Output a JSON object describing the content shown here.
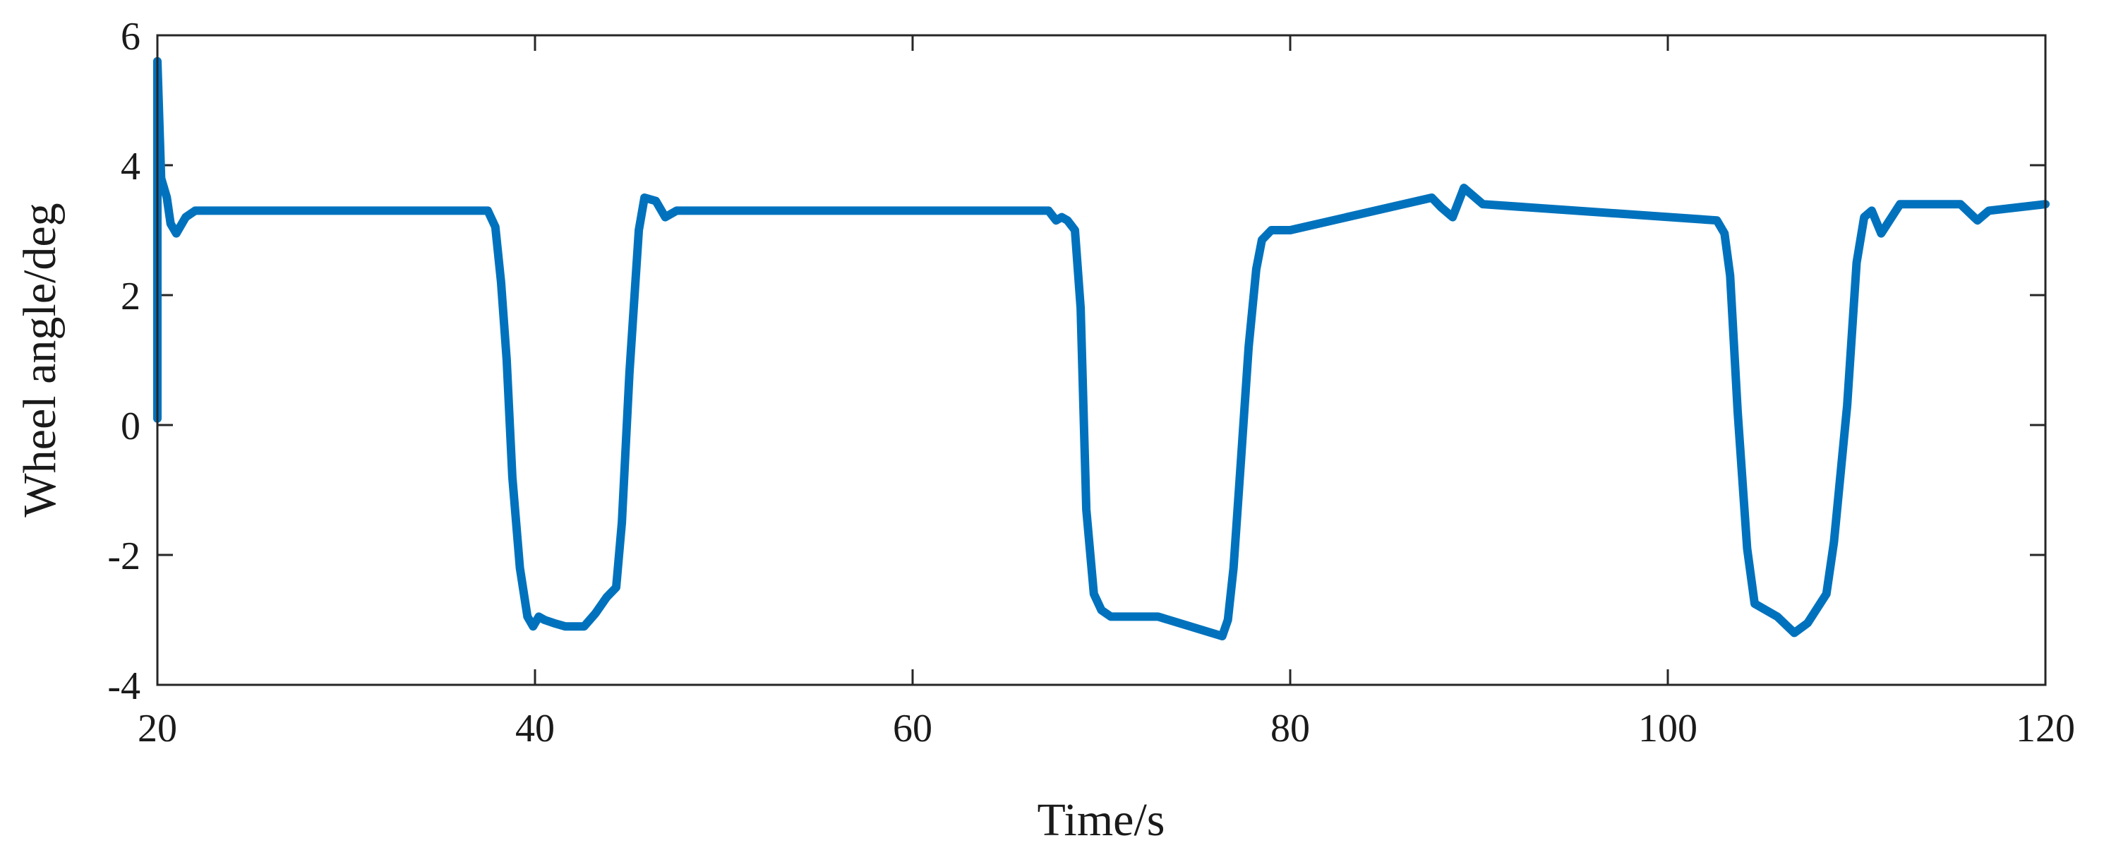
{
  "chart_data": {
    "type": "line",
    "title": "",
    "xlabel": "Time/s",
    "ylabel": "Wheel angle/deg",
    "xlim": [
      20,
      120
    ],
    "ylim": [
      -4,
      6
    ],
    "xticks": [
      20,
      40,
      60,
      80,
      100,
      120
    ],
    "yticks": [
      -4,
      -2,
      0,
      2,
      4,
      6
    ],
    "xtick_labels": [
      "20",
      "40",
      "60",
      "80",
      "100",
      "120"
    ],
    "ytick_labels": [
      "-4",
      "-2",
      "0",
      "2",
      "4",
      "6"
    ],
    "grid": false,
    "series": [
      {
        "color": "#0072bd",
        "x": [
          20.0,
          20.0,
          20.2,
          20.5,
          20.7,
          21.0,
          21.5,
          22.0,
          37.5,
          37.9,
          38.2,
          38.5,
          38.8,
          39.2,
          39.6,
          39.9,
          40.2,
          40.5,
          41.0,
          41.6,
          42.6,
          43.2,
          43.8,
          44.3,
          44.6,
          45.0,
          45.5,
          45.8,
          46.4,
          46.9,
          47.5,
          67.2,
          67.6,
          67.9,
          68.2,
          68.6,
          68.9,
          69.2,
          69.6,
          70.0,
          70.5,
          71.5,
          73.0,
          76.4,
          76.7,
          77.0,
          77.4,
          77.8,
          78.2,
          78.5,
          79.0,
          80.0,
          87.5,
          88.0,
          88.6,
          89.2,
          90.2,
          102.6,
          103.0,
          103.3,
          103.7,
          104.2,
          104.6,
          105.8,
          106.7,
          107.4,
          108.4,
          108.8,
          109.5,
          110.0,
          110.4,
          110.8,
          111.3,
          112.3,
          115.5,
          116.4,
          117.0,
          120.0
        ],
        "y": [
          0.1,
          5.6,
          3.8,
          3.5,
          3.1,
          2.95,
          3.2,
          3.3,
          3.3,
          3.05,
          2.2,
          1.0,
          -0.8,
          -2.2,
          -2.95,
          -3.1,
          -2.95,
          -3.0,
          -3.05,
          -3.1,
          -3.1,
          -2.9,
          -2.65,
          -2.5,
          -1.5,
          0.8,
          3.0,
          3.5,
          3.45,
          3.2,
          3.3,
          3.3,
          3.15,
          3.2,
          3.15,
          3.0,
          1.8,
          -1.3,
          -2.6,
          -2.85,
          -2.95,
          -2.95,
          -2.95,
          -3.25,
          -3.0,
          -2.2,
          -0.5,
          1.2,
          2.4,
          2.85,
          3.0,
          3.0,
          3.5,
          3.35,
          3.2,
          3.65,
          3.4,
          3.15,
          2.95,
          2.3,
          0.2,
          -1.9,
          -2.75,
          -2.95,
          -3.2,
          -3.05,
          -2.6,
          -1.8,
          0.3,
          2.5,
          3.2,
          3.3,
          2.95,
          3.4,
          3.4,
          3.15,
          3.3,
          3.4
        ]
      }
    ]
  }
}
